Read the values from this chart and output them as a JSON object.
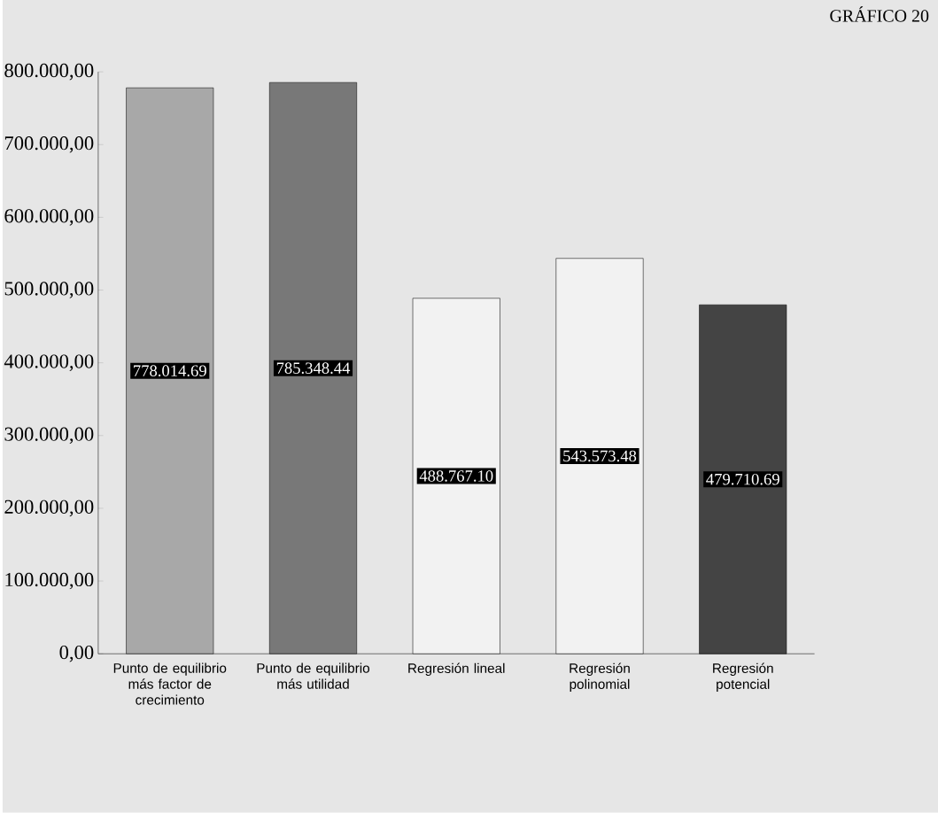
{
  "chart_data": {
    "type": "bar",
    "title": "GRÁFICO 20",
    "categories": [
      "Punto de equilibrio más factor de crecimiento",
      "Punto de equilibrio más utilidad",
      "Regresión lineal",
      "Regresión polinomial",
      "Regresión potencial"
    ],
    "values": [
      778014.69,
      785348.44,
      488767.1,
      543573.48,
      479710.69
    ],
    "colors": [
      "#a8a8a8",
      "#787878",
      "#f2f2f2",
      "#f2f2f2",
      "#444444"
    ],
    "value_labels": [
      "778.014.69",
      "785.348.44",
      "488.767.10",
      "543.573.48",
      "479.710.69"
    ],
    "ylim": [
      0,
      800000
    ],
    "yticks": [
      {
        "value": 0,
        "label": "0,00"
      },
      {
        "value": 100000,
        "label": "100.000,00"
      },
      {
        "value": 200000,
        "label": "200.000,00"
      },
      {
        "value": 300000,
        "label": "300.000,00"
      },
      {
        "value": 400000,
        "label": "400.000,00"
      },
      {
        "value": 500000,
        "label": "500.000,00"
      },
      {
        "value": 600000,
        "label": "600.000,00"
      },
      {
        "value": 700000,
        "label": "700.000,00"
      },
      {
        "value": 800000,
        "label": "800.000,00"
      }
    ]
  }
}
